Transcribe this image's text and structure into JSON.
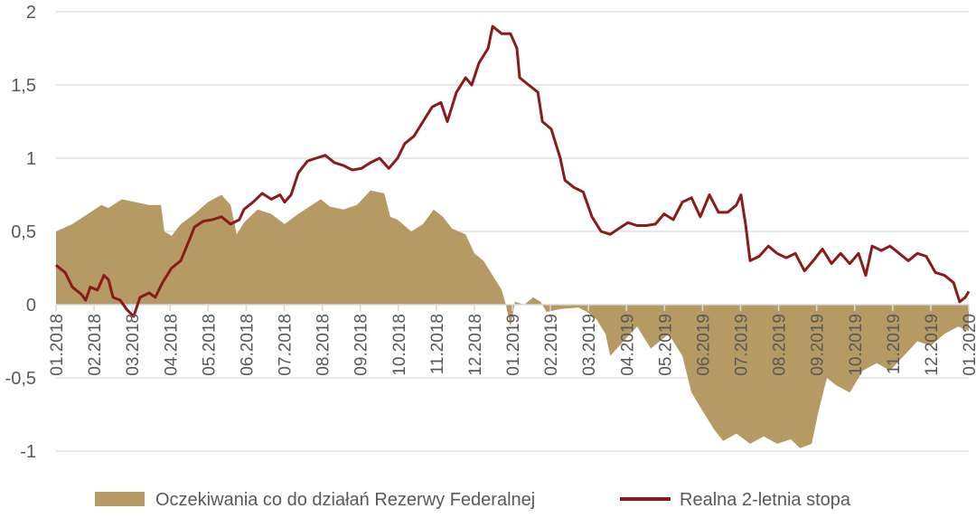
{
  "chart_data": {
    "type": "area+line",
    "title": "",
    "xlabel": "",
    "ylabel": "",
    "x_unit": "months since 01.2018",
    "xlim": [
      0,
      24
    ],
    "ylim": [
      -1,
      2
    ],
    "yticks": [
      2,
      1.5,
      1,
      0.5,
      0,
      -0.5,
      -1
    ],
    "ytick_labels": [
      "2",
      "1,5",
      "1",
      "0,5",
      "0",
      "-0,5",
      "-1"
    ],
    "xtick_labels": [
      "01.2018",
      "02.2018",
      "03.2018",
      "04.2018",
      "05.2018",
      "06.2018",
      "07.2018",
      "08.2018",
      "09.2018",
      "10.2018",
      "11.2018",
      "12.2018",
      "01.2019",
      "02.2019",
      "03.2019",
      "04.2019",
      "05.2019",
      "06.2019",
      "07.2019",
      "08.2019",
      "09.2019",
      "10.2019",
      "11.2019",
      "12.2019",
      "01.2020"
    ],
    "grid": true,
    "legend_position": "bottom",
    "series": [
      {
        "name": "Oczekiwania co do działań Rezerwy Federalnej",
        "kind": "area",
        "color": "#b59a63",
        "x": [
          0,
          0.43,
          0.9,
          1.19,
          1.38,
          1.73,
          2.09,
          2.45,
          2.76,
          2.85,
          3.04,
          3.28,
          3.64,
          3.99,
          4.35,
          4.59,
          4.75,
          4.94,
          5.3,
          5.66,
          6.01,
          6.37,
          6.73,
          6.96,
          7.2,
          7.56,
          7.91,
          8.27,
          8.63,
          8.79,
          8.98,
          9.34,
          9.65,
          9.93,
          10.17,
          10.41,
          10.77,
          11.0,
          11.24,
          11.48,
          11.72,
          11.83,
          11.95,
          12.07,
          12.31,
          12.55,
          12.74,
          12.9,
          13.26,
          13.74,
          13.97,
          14.21,
          14.45,
          14.57,
          14.92,
          15.28,
          15.64,
          16.11,
          16.47,
          16.71,
          16.94,
          17.3,
          17.54,
          17.89,
          18.25,
          18.61,
          18.96,
          19.32,
          19.56,
          19.87,
          20.03,
          20.27,
          20.51,
          20.87,
          21.22,
          21.58,
          21.93,
          22.29,
          22.65,
          23.0,
          23.36,
          23.72,
          24
        ],
        "y": [
          0.5,
          0.55,
          0.63,
          0.68,
          0.66,
          0.72,
          0.7,
          0.68,
          0.68,
          0.5,
          0.47,
          0.55,
          0.62,
          0.7,
          0.75,
          0.68,
          0.48,
          0.56,
          0.65,
          0.62,
          0.55,
          0.62,
          0.68,
          0.72,
          0.67,
          0.65,
          0.68,
          0.78,
          0.76,
          0.6,
          0.58,
          0.5,
          0.55,
          0.65,
          0.6,
          0.52,
          0.48,
          0.35,
          0.3,
          0.2,
          0.1,
          0.0,
          -0.15,
          0.02,
          0.0,
          0.05,
          0.02,
          -0.05,
          -0.03,
          -0.02,
          -0.05,
          -0.1,
          -0.2,
          -0.35,
          -0.25,
          -0.15,
          -0.3,
          -0.2,
          -0.35,
          -0.6,
          -0.7,
          -0.85,
          -0.93,
          -0.88,
          -0.95,
          -0.9,
          -0.95,
          -0.92,
          -0.98,
          -0.95,
          -0.75,
          -0.5,
          -0.55,
          -0.6,
          -0.45,
          -0.4,
          -0.45,
          -0.35,
          -0.25,
          -0.28,
          -0.2,
          -0.15,
          -0.18
        ]
      },
      {
        "name": "Realna 2-letnia stopa",
        "kind": "line",
        "color": "#8b1a1a",
        "x": [
          0,
          0.24,
          0.43,
          0.67,
          0.78,
          0.9,
          1.09,
          1.26,
          1.38,
          1.5,
          1.69,
          1.85,
          2.04,
          2.21,
          2.45,
          2.61,
          2.8,
          3.04,
          3.28,
          3.52,
          3.64,
          3.87,
          4.11,
          4.35,
          4.59,
          4.82,
          4.94,
          5.18,
          5.42,
          5.66,
          5.89,
          6.01,
          6.18,
          6.37,
          6.61,
          6.84,
          7.08,
          7.32,
          7.56,
          7.79,
          8.03,
          8.27,
          8.51,
          8.75,
          8.98,
          9.17,
          9.41,
          9.65,
          9.89,
          10.12,
          10.29,
          10.53,
          10.77,
          10.93,
          11.12,
          11.36,
          11.48,
          11.72,
          11.95,
          12.12,
          12.19,
          12.43,
          12.67,
          12.79,
          13.02,
          13.26,
          13.38,
          13.62,
          13.86,
          14.09,
          14.33,
          14.57,
          14.8,
          15.04,
          15.28,
          15.52,
          15.76,
          15.99,
          16.23,
          16.47,
          16.71,
          16.94,
          17.18,
          17.42,
          17.66,
          17.89,
          18.01,
          18.13,
          18.25,
          18.49,
          18.73,
          18.96,
          19.2,
          19.44,
          19.68,
          19.91,
          20.15,
          20.39,
          20.63,
          20.87,
          21.1,
          21.29,
          21.46,
          21.7,
          21.93,
          22.17,
          22.41,
          22.65,
          22.88,
          23.12,
          23.36,
          23.6,
          23.76,
          23.91,
          24
        ],
        "y": [
          0.27,
          0.22,
          0.12,
          0.07,
          0.03,
          0.12,
          0.1,
          0.2,
          0.17,
          0.05,
          0.03,
          -0.03,
          -0.08,
          0.05,
          0.08,
          0.05,
          0.15,
          0.25,
          0.3,
          0.45,
          0.53,
          0.57,
          0.58,
          0.6,
          0.55,
          0.58,
          0.65,
          0.7,
          0.76,
          0.72,
          0.75,
          0.7,
          0.75,
          0.9,
          0.98,
          1.0,
          1.02,
          0.97,
          0.95,
          0.92,
          0.93,
          0.97,
          1.0,
          0.93,
          1.0,
          1.1,
          1.15,
          1.25,
          1.35,
          1.38,
          1.25,
          1.45,
          1.55,
          1.5,
          1.65,
          1.75,
          1.9,
          1.85,
          1.85,
          1.75,
          1.55,
          1.5,
          1.45,
          1.25,
          1.2,
          1.0,
          0.85,
          0.8,
          0.77,
          0.6,
          0.5,
          0.48,
          0.52,
          0.56,
          0.54,
          0.54,
          0.55,
          0.62,
          0.58,
          0.7,
          0.73,
          0.6,
          0.75,
          0.63,
          0.63,
          0.68,
          0.75,
          0.55,
          0.3,
          0.33,
          0.4,
          0.35,
          0.32,
          0.35,
          0.23,
          0.3,
          0.38,
          0.28,
          0.35,
          0.28,
          0.35,
          0.2,
          0.4,
          0.37,
          0.4,
          0.35,
          0.3,
          0.35,
          0.33,
          0.22,
          0.2,
          0.15,
          0.02,
          0.05,
          0.09
        ]
      }
    ]
  }
}
